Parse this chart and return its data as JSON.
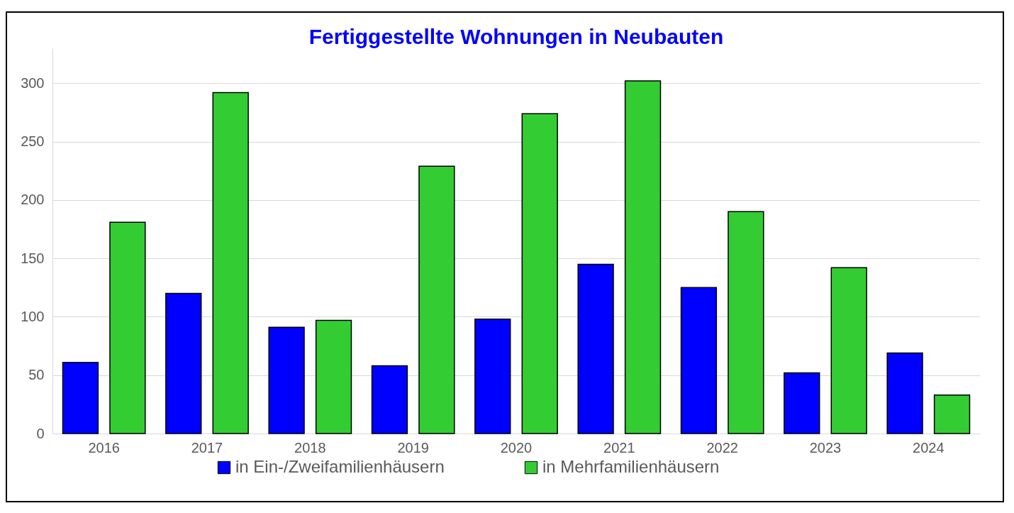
{
  "chart_data": {
    "type": "bar",
    "title": "Fertiggestellte Wohnungen in Neubauten",
    "categories": [
      "2016",
      "2017",
      "2018",
      "2019",
      "2020",
      "2021",
      "2022",
      "2023",
      "2024"
    ],
    "series": [
      {
        "name": "in Ein-/Zweifamilienhäusern",
        "color": "#0000ff",
        "values": [
          61,
          120,
          91,
          58,
          98,
          145,
          125,
          52,
          69
        ]
      },
      {
        "name": "in Mehrfamilienhäusern",
        "color": "#33cc33",
        "values": [
          181,
          292,
          97,
          229,
          274,
          302,
          190,
          142,
          33
        ]
      }
    ],
    "ylim": [
      0,
      330
    ],
    "yticks": [
      0,
      50,
      100,
      150,
      200,
      250,
      300
    ],
    "grid": "y",
    "legend": "bottom"
  }
}
